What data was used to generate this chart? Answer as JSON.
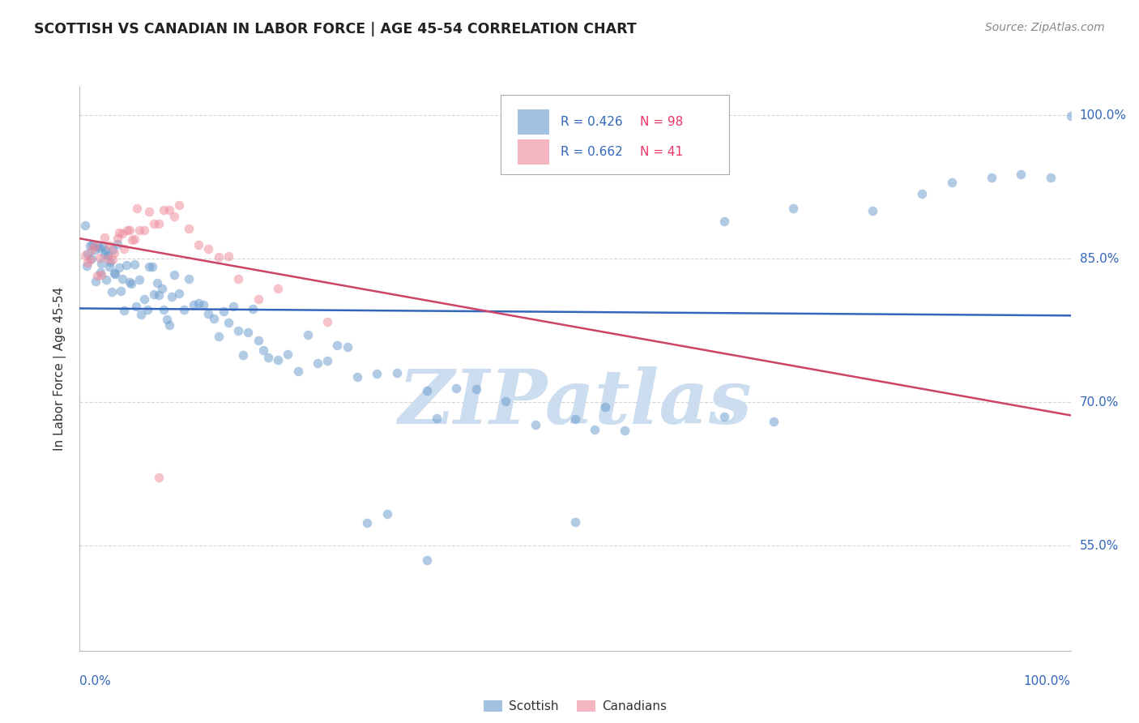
{
  "title": "SCOTTISH VS CANADIAN IN LABOR FORCE | AGE 45-54 CORRELATION CHART",
  "source": "Source: ZipAtlas.com",
  "ylabel": "In Labor Force | Age 45-54",
  "xlim": [
    0.0,
    1.0
  ],
  "ylim": [
    0.44,
    1.03
  ],
  "legend_blue_R": "R = 0.426",
  "legend_blue_N": "N = 98",
  "legend_pink_R": "R = 0.662",
  "legend_pink_N": "N = 41",
  "watermark": "ZIPatlas",
  "watermark_color": "#ccddf0",
  "background_color": "#ffffff",
  "grid_color": "#cccccc",
  "blue_color": "#6699cc",
  "pink_color": "#ee8899",
  "blue_line_color": "#3366bb",
  "pink_line_color": "#cc4466",
  "ytick_vals": [
    0.55,
    0.7,
    0.85,
    1.0
  ],
  "ytick_labels": [
    "55.0%",
    "70.0%",
    "85.0%",
    "100.0%"
  ],
  "blue_x": [
    0.005,
    0.007,
    0.008,
    0.01,
    0.012,
    0.013,
    0.015,
    0.016,
    0.018,
    0.02,
    0.021,
    0.022,
    0.023,
    0.025,
    0.026,
    0.027,
    0.028,
    0.03,
    0.031,
    0.032,
    0.033,
    0.035,
    0.036,
    0.038,
    0.04,
    0.041,
    0.043,
    0.045,
    0.047,
    0.05,
    0.052,
    0.055,
    0.057,
    0.06,
    0.062,
    0.065,
    0.068,
    0.07,
    0.073,
    0.075,
    0.078,
    0.08,
    0.083,
    0.085,
    0.088,
    0.09,
    0.093,
    0.095,
    0.1,
    0.105,
    0.11,
    0.115,
    0.12,
    0.125,
    0.13,
    0.135,
    0.14,
    0.145,
    0.15,
    0.155,
    0.16,
    0.165,
    0.17,
    0.175,
    0.18,
    0.185,
    0.19,
    0.2,
    0.21,
    0.22,
    0.23,
    0.24,
    0.25,
    0.26,
    0.27,
    0.28,
    0.3,
    0.32,
    0.35,
    0.36,
    0.38,
    0.4,
    0.43,
    0.46,
    0.5,
    0.52,
    0.55,
    0.65,
    0.72,
    0.8,
    0.85,
    0.88,
    0.92,
    0.95,
    0.98,
    1.0,
    0.29,
    0.31
  ],
  "blue_y": [
    0.86,
    0.85,
    0.855,
    0.858,
    0.862,
    0.865,
    0.86,
    0.853,
    0.848,
    0.852,
    0.845,
    0.848,
    0.855,
    0.858,
    0.862,
    0.85,
    0.845,
    0.84,
    0.843,
    0.838,
    0.835,
    0.833,
    0.84,
    0.835,
    0.842,
    0.838,
    0.835,
    0.83,
    0.828,
    0.832,
    0.835,
    0.828,
    0.825,
    0.82,
    0.823,
    0.818,
    0.815,
    0.82,
    0.815,
    0.818,
    0.812,
    0.815,
    0.81,
    0.808,
    0.812,
    0.808,
    0.805,
    0.8,
    0.81,
    0.805,
    0.8,
    0.798,
    0.802,
    0.798,
    0.795,
    0.792,
    0.79,
    0.788,
    0.785,
    0.782,
    0.78,
    0.778,
    0.775,
    0.772,
    0.77,
    0.768,
    0.765,
    0.76,
    0.755,
    0.75,
    0.748,
    0.745,
    0.742,
    0.738,
    0.735,
    0.73,
    0.725,
    0.72,
    0.715,
    0.71,
    0.705,
    0.7,
    0.695,
    0.69,
    0.685,
    0.68,
    0.675,
    0.87,
    0.88,
    0.89,
    0.91,
    0.92,
    0.935,
    0.94,
    0.945,
    1.0,
    0.54,
    0.57
  ],
  "pink_x": [
    0.005,
    0.008,
    0.01,
    0.012,
    0.015,
    0.018,
    0.02,
    0.022,
    0.025,
    0.028,
    0.03,
    0.033,
    0.035,
    0.038,
    0.04,
    0.043,
    0.045,
    0.048,
    0.05,
    0.053,
    0.055,
    0.058,
    0.06,
    0.065,
    0.07,
    0.075,
    0.08,
    0.085,
    0.09,
    0.095,
    0.1,
    0.11,
    0.12,
    0.13,
    0.14,
    0.15,
    0.16,
    0.18,
    0.2,
    0.25,
    0.08
  ],
  "pink_y": [
    0.858,
    0.852,
    0.86,
    0.855,
    0.858,
    0.85,
    0.845,
    0.84,
    0.855,
    0.848,
    0.843,
    0.855,
    0.86,
    0.868,
    0.865,
    0.87,
    0.875,
    0.878,
    0.88,
    0.875,
    0.878,
    0.882,
    0.885,
    0.89,
    0.892,
    0.885,
    0.888,
    0.892,
    0.895,
    0.89,
    0.895,
    0.878,
    0.872,
    0.865,
    0.858,
    0.85,
    0.842,
    0.83,
    0.818,
    0.8,
    0.645
  ]
}
